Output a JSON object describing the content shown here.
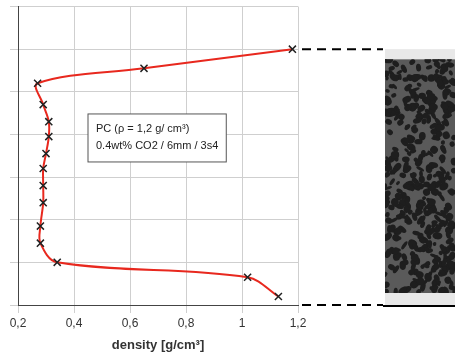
{
  "chart_data": {
    "type": "line",
    "x_label": "density [g/cm³]",
    "annotations": [
      "PC (ρ = 1,2 g/ cm³)",
      "0.4wt% CO2 / 6mm / 3s4"
    ],
    "series": [
      {
        "color": "#e8281e",
        "marker": "x",
        "line_style": "solid",
        "x": [
          1.18,
          0.65,
          0.27,
          0.29,
          0.31,
          0.31,
          0.3,
          0.29,
          0.29,
          0.29,
          0.28,
          0.28,
          0.34,
          1.02,
          1.13
        ],
        "values": [
          6.0,
          5.55,
          5.2,
          4.7,
          4.3,
          3.95,
          3.55,
          3.2,
          2.8,
          2.4,
          1.85,
          1.45,
          1.0,
          0.65,
          0.2
        ]
      }
    ],
    "xlim": [
      0.2,
      1.2
    ],
    "xticks": [
      {
        "value": 0.2,
        "label": "0,2"
      },
      {
        "value": 0.4,
        "label": "0,4"
      },
      {
        "value": 0.6,
        "label": "0,6"
      },
      {
        "value": 0.8,
        "label": "0,8"
      },
      {
        "value": 1.0,
        "label": "1"
      },
      {
        "value": 1.2,
        "label": "1,2"
      }
    ],
    "ylim": [
      0,
      7
    ],
    "yticks": [
      0,
      1,
      2,
      3,
      4,
      5,
      6,
      7
    ],
    "grid": true,
    "tick_labels": "x"
  }
}
